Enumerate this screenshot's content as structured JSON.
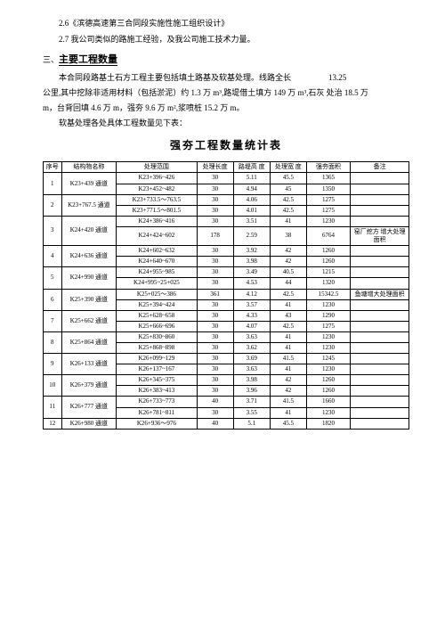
{
  "intro": {
    "line1": "2.6《滨德高速第三合同段实施性施工组织设计》",
    "line2": "2.7 我公司类似的路施工经验，及我公司施工技术力量。",
    "sectionNum": "三、",
    "sectionTitle": "主要工程数量",
    "body1a": "本合同段路基土石方工程主要包括填土路基及软基处理。线路全长",
    "body1num": "13.25",
    "body2": "公里,其中挖除非适用材料（包括淤泥）约 1.3 万 m³,路堤借土填方 149 万 m³,石灰 处治 18.5 万",
    "body3": "m，台背回填 4.6 万 m，强夯 9.6 万 m²,浆喷桩 15.2 万 m。",
    "body4": "软基处理各处具体工程数量见下表：",
    "tableTitle": "强夯工程数量统计表"
  },
  "headers": {
    "idx": "序号",
    "name": "结构物名称",
    "range": "处理范围",
    "len": "处理长度",
    "h": "路堤高  度",
    "w": "处理宽  度",
    "area": "强夯面积",
    "note": "备注"
  },
  "rows": [
    {
      "idx": "1",
      "name": "K23+439 通道",
      "sub": [
        {
          "range": "K23+396~426",
          "len": "30",
          "h": "5.11",
          "w": "45.5",
          "area": "1365",
          "note": ""
        },
        {
          "range": "K23+452~482",
          "len": "30",
          "h": "4.94",
          "w": "45",
          "area": "1350",
          "note": ""
        }
      ]
    },
    {
      "idx": "2",
      "name": "K23+767.5 通道",
      "sub": [
        {
          "range": "K23+733.5～763.5",
          "len": "30",
          "h": "4.06",
          "w": "42.5",
          "area": "1275",
          "note": ""
        },
        {
          "range": "K23+771.5～801.5",
          "len": "30",
          "h": "4.01",
          "w": "42.5",
          "area": "1275",
          "note": ""
        }
      ]
    },
    {
      "idx": "3",
      "name": "K24+420 通道",
      "sub": [
        {
          "range": "K24+386~416",
          "len": "30",
          "h": "3.51",
          "w": "41",
          "area": "1230",
          "note": ""
        },
        {
          "range": "K24+424~602",
          "len": "178",
          "h": "2.59",
          "w": "38",
          "area": "6764",
          "note": "窑厂挖方  增大处理  面积"
        }
      ]
    },
    {
      "idx": "4",
      "name": "K24+636 通道",
      "sub": [
        {
          "range": "K24+602~632",
          "len": "30",
          "h": "3.92",
          "w": "42",
          "area": "1260",
          "note": ""
        },
        {
          "range": "K24+640~670",
          "len": "30",
          "h": "3.98",
          "w": "42",
          "area": "1260",
          "note": ""
        }
      ]
    },
    {
      "idx": "5",
      "name": "K24+990 通道",
      "sub": [
        {
          "range": "K24+955~985",
          "len": "30",
          "h": "3.49",
          "w": "40.5",
          "area": "1215",
          "note": ""
        },
        {
          "range": "K24+995~25+025",
          "len": "30",
          "h": "4.53",
          "w": "44",
          "area": "1320",
          "note": ""
        }
      ]
    },
    {
      "idx": "6",
      "name": "K25+390 通道",
      "sub": [
        {
          "range": "K25+025～386",
          "len": "361",
          "h": "4.12",
          "w": "42.5",
          "area": "15342.5",
          "note": "鱼塘增大处理面积"
        },
        {
          "range": "K25+394~424",
          "len": "30",
          "h": "3.57",
          "w": "41",
          "area": "1230",
          "note": ""
        }
      ]
    },
    {
      "idx": "7",
      "name": "K25+662 通道",
      "sub": [
        {
          "range": "K25+628~658",
          "len": "30",
          "h": "4.33",
          "w": "43",
          "area": "1290",
          "note": ""
        },
        {
          "range": "K25+666~696",
          "len": "30",
          "h": "4.07",
          "w": "42.5",
          "area": "1275",
          "note": ""
        }
      ]
    },
    {
      "idx": "8",
      "name": "K25+864 通道",
      "sub": [
        {
          "range": "K25+830~860",
          "len": "30",
          "h": "3.63",
          "w": "41",
          "area": "1230",
          "note": ""
        },
        {
          "range": "K25+868~898",
          "len": "30",
          "h": "3.62",
          "w": "41",
          "area": "1230",
          "note": ""
        }
      ]
    },
    {
      "idx": "9",
      "name": "K26+133 通道",
      "sub": [
        {
          "range": "K26+099~129",
          "len": "30",
          "h": "3.69",
          "w": "41.5",
          "area": "1245",
          "note": ""
        },
        {
          "range": "K26+137~167",
          "len": "30",
          "h": "3.63",
          "w": "41",
          "area": "1230",
          "note": ""
        }
      ]
    },
    {
      "idx": "10",
      "name": "K26+379 通道",
      "sub": [
        {
          "range": "K26+345~375",
          "len": "30",
          "h": "3.98",
          "w": "42",
          "area": "1260",
          "note": ""
        },
        {
          "range": "K26+383~413",
          "len": "30",
          "h": "3.96",
          "w": "42",
          "area": "1260",
          "note": ""
        }
      ]
    },
    {
      "idx": "11",
      "name": "K26+777 通道",
      "sub": [
        {
          "range": "K26+733~773",
          "len": "40",
          "h": "3.71",
          "w": "41.5",
          "area": "1660",
          "note": ""
        },
        {
          "range": "K26+781~811",
          "len": "30",
          "h": "3.55",
          "w": "41",
          "area": "1230",
          "note": ""
        }
      ]
    },
    {
      "idx": "12",
      "name": "K26+980 通道",
      "sub": [
        {
          "range": "K26+936～976",
          "len": "40",
          "h": "5.1",
          "w": "45.5",
          "area": "1820",
          "note": ""
        }
      ]
    }
  ]
}
